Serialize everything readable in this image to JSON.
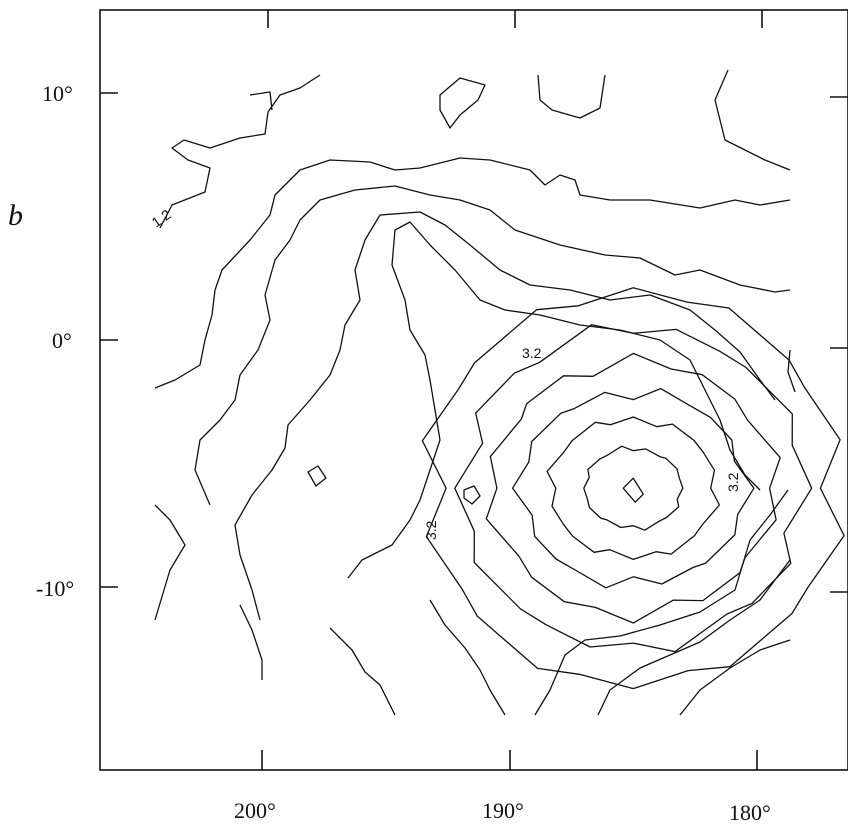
{
  "chart_data": {
    "type": "contour",
    "title": "",
    "xlabel": "",
    "ylabel": "b",
    "x_ticks": [
      "200°",
      "190°",
      "180°"
    ],
    "y_ticks": [
      "10°",
      "0°",
      "-10°"
    ],
    "x_reversed": true,
    "grid": false,
    "center": {
      "l": 185,
      "b": -6
    },
    "contour_labels": [
      "1.2",
      "3.2",
      "3.2",
      "3.2"
    ],
    "levels": [
      {
        "rx": 2.0,
        "ry": 1.6
      },
      {
        "rx": 3.4,
        "ry": 2.8
      },
      {
        "rx": 4.6,
        "ry": 3.9
      },
      {
        "rx": 5.8,
        "ry": 5.1
      },
      {
        "rx": 7.0,
        "ry": 6.4
      },
      {
        "rx": 8.4,
        "ry": 7.8
      }
    ]
  }
}
